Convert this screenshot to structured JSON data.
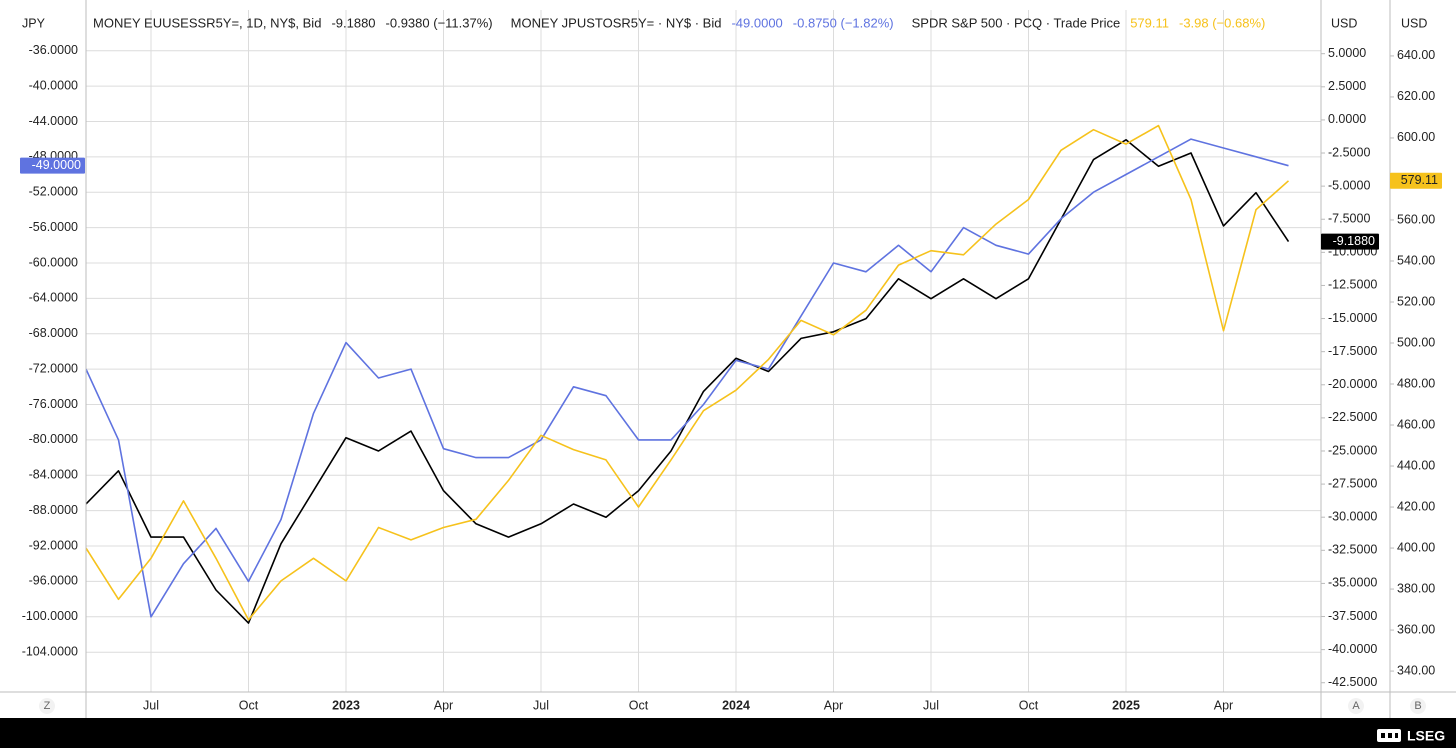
{
  "ui": {
    "buttons": [
      "Z",
      "A",
      "B"
    ],
    "brand": "LSEG"
  },
  "chart_data": {
    "type": "line",
    "ylabel": "JPY",
    "y2label": "USD",
    "y3label": "USD",
    "grid": true,
    "x": [
      "2022-05",
      "2022-06",
      "2022-07",
      "2022-08",
      "2022-09",
      "2022-10",
      "2022-11",
      "2022-12",
      "2023-01",
      "2023-02",
      "2023-03",
      "2023-04",
      "2023-05",
      "2023-06",
      "2023-07",
      "2023-08",
      "2023-09",
      "2023-10",
      "2023-11",
      "2023-12",
      "2024-01",
      "2024-02",
      "2024-03",
      "2024-04",
      "2024-05",
      "2024-06",
      "2024-07",
      "2024-08",
      "2024-09",
      "2024-10",
      "2024-11",
      "2024-12",
      "2025-01",
      "2025-02",
      "2025-03",
      "2025-04",
      "2025-05",
      "2025-06"
    ],
    "xlim": [
      "2022-05",
      "2025-07"
    ],
    "xticks": [
      {
        "value": "2022-07",
        "label": "Jul"
      },
      {
        "value": "2022-10",
        "label": "Oct"
      },
      {
        "value": "2023-01",
        "label": "2023"
      },
      {
        "value": "2023-04",
        "label": "Apr"
      },
      {
        "value": "2023-07",
        "label": "Jul"
      },
      {
        "value": "2023-10",
        "label": "Oct"
      },
      {
        "value": "2024-01",
        "label": "2024"
      },
      {
        "value": "2024-04",
        "label": "Apr"
      },
      {
        "value": "2024-07",
        "label": "Jul"
      },
      {
        "value": "2024-10",
        "label": "Oct"
      },
      {
        "value": "2025-01",
        "label": "2025"
      },
      {
        "value": "2025-04",
        "label": "Apr"
      }
    ],
    "ylim": [
      -108.5,
      -31.4
    ],
    "yticks": [
      {
        "value": -36,
        "label": "-36.0000"
      },
      {
        "value": -40,
        "label": "-40.0000"
      },
      {
        "value": -44,
        "label": "-44.0000"
      },
      {
        "value": -48,
        "label": "-48.0000"
      },
      {
        "value": -52,
        "label": "-52.0000"
      },
      {
        "value": -56,
        "label": "-56.0000"
      },
      {
        "value": -60,
        "label": "-60.0000"
      },
      {
        "value": -64,
        "label": "-64.0000"
      },
      {
        "value": -68,
        "label": "-68.0000"
      },
      {
        "value": -72,
        "label": "-72.0000"
      },
      {
        "value": -76,
        "label": "-76.0000"
      },
      {
        "value": -80,
        "label": "-80.0000"
      },
      {
        "value": -84,
        "label": "-84.0000"
      },
      {
        "value": -88,
        "label": "-88.0000"
      },
      {
        "value": -92,
        "label": "-92.0000"
      },
      {
        "value": -96,
        "label": "-96.0000"
      },
      {
        "value": -100,
        "label": "-100.0000"
      },
      {
        "value": -104,
        "label": "-104.0000"
      }
    ],
    "y2lim": [
      -43.2,
      8.3
    ],
    "y2ticks": [
      {
        "value": 5,
        "label": "5.0000"
      },
      {
        "value": 2.5,
        "label": "2.5000"
      },
      {
        "value": 0,
        "label": "0.0000"
      },
      {
        "value": -2.5,
        "label": "-2.5000"
      },
      {
        "value": -5,
        "label": "-5.0000"
      },
      {
        "value": -7.5,
        "label": "-7.5000"
      },
      {
        "value": -10,
        "label": "-10.0000"
      },
      {
        "value": -12.5,
        "label": "-12.5000"
      },
      {
        "value": -15,
        "label": "-15.0000"
      },
      {
        "value": -17.5,
        "label": "-17.5000"
      },
      {
        "value": -20,
        "label": "-20.0000"
      },
      {
        "value": -22.5,
        "label": "-22.5000"
      },
      {
        "value": -25,
        "label": "-25.0000"
      },
      {
        "value": -27.5,
        "label": "-27.5000"
      },
      {
        "value": -30,
        "label": "-30.0000"
      },
      {
        "value": -32.5,
        "label": "-32.5000"
      },
      {
        "value": -35,
        "label": "-35.0000"
      },
      {
        "value": -37.5,
        "label": "-37.5000"
      },
      {
        "value": -40,
        "label": "-40.0000"
      },
      {
        "value": -42.5,
        "label": "-42.5000"
      }
    ],
    "y3lim": [
      329.8,
      662.4
    ],
    "y3ticks": [
      {
        "value": 640,
        "label": "640.00"
      },
      {
        "value": 620,
        "label": "620.00"
      },
      {
        "value": 600,
        "label": "600.00"
      },
      {
        "value": 580,
        "label": "580.00"
      },
      {
        "value": 560,
        "label": "560.00"
      },
      {
        "value": 540,
        "label": "540.00"
      },
      {
        "value": 520,
        "label": "520.00"
      },
      {
        "value": 500,
        "label": "500.00"
      },
      {
        "value": 480,
        "label": "480.00"
      },
      {
        "value": 460,
        "label": "460.00"
      },
      {
        "value": 440,
        "label": "440.00"
      },
      {
        "value": 420,
        "label": "420.00"
      },
      {
        "value": 400,
        "label": "400.00"
      },
      {
        "value": 380,
        "label": "380.00"
      },
      {
        "value": 360,
        "label": "360.00"
      },
      {
        "value": 340,
        "label": "340.00"
      }
    ],
    "series": [
      {
        "name": "MONEY EUUSESSR5Y=, 1D, NY$, Bid",
        "color": "#000000",
        "axis": "y2",
        "last_label": "-9.1880",
        "change_label": "-0.9380 (−11.37%)",
        "values": [
          -29,
          -26.5,
          -31.5,
          -31.5,
          -35.5,
          -38,
          -32,
          -28,
          -24,
          -25,
          -23.5,
          -28,
          -30.5,
          -31.5,
          -30.5,
          -29,
          -30,
          -28,
          -25,
          -20.5,
          -18,
          -19,
          -16.5,
          -16,
          -15,
          -12,
          -13.5,
          -12,
          -13.5,
          -12,
          -7.5,
          -3,
          -1.5,
          -3.5,
          -2.5,
          -8,
          -5.5,
          -9.188
        ]
      },
      {
        "name": "MONEY JPUSTOSR5Y= · NY$ · Bid",
        "color": "#5f73e0",
        "axis": "y",
        "last_label": "-49.0000",
        "change_label": "-0.8750 (−1.82%)",
        "values": [
          -72,
          -80,
          -100,
          -94,
          -90,
          -96,
          -89,
          -77,
          -69,
          -73,
          -72,
          -81,
          -82,
          -82,
          -80,
          -74,
          -75,
          -80,
          -80,
          -76,
          -71,
          -72,
          -66,
          -60,
          -61,
          -58,
          -61,
          -56,
          -58,
          -59,
          -55,
          -52,
          -50,
          -48,
          -46,
          -47,
          -48,
          -49
        ]
      },
      {
        "name": "SPDR S&P 500 · PCQ · Trade Price",
        "color": "#f6c21c",
        "axis": "y3",
        "last_label": "579.11",
        "change_label": "-3.98 (−0.68%)",
        "values": [
          400,
          375,
          395,
          423,
          395,
          365,
          384,
          395,
          384,
          410,
          404,
          410,
          414,
          433,
          455,
          448,
          443,
          420,
          443,
          467,
          477,
          492,
          511,
          504,
          516,
          538,
          545,
          543,
          558,
          570,
          594,
          604,
          597,
          606,
          570,
          506,
          565,
          579.11
        ]
      }
    ]
  }
}
